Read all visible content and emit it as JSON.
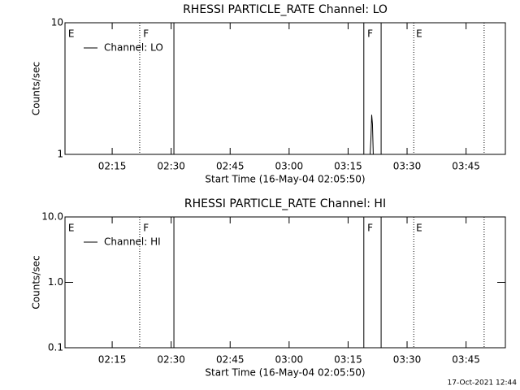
{
  "chart_data": [
    {
      "type": "line",
      "title": "RHESSI PARTICLE_RATE Channel: LO",
      "xlabel": "Start Time (16-May-04 02:05:50)",
      "ylabel": "Counts/sec",
      "log_y": true,
      "legend": "upper left",
      "xlim": [
        3,
        115
      ],
      "ylim": [
        1,
        10
      ],
      "xticks": [
        {
          "value": 15,
          "label": "02:15"
        },
        {
          "value": 30,
          "label": "02:30"
        },
        {
          "value": 45,
          "label": "02:45"
        },
        {
          "value": 60,
          "label": "03:00"
        },
        {
          "value": 75,
          "label": "03:15"
        },
        {
          "value": 90,
          "label": "03:30"
        },
        {
          "value": 105,
          "label": "03:45"
        }
      ],
      "yticks": [
        1,
        10
      ],
      "vlines": [
        {
          "x": 22.0,
          "style": "dotted"
        },
        {
          "x": 30.7,
          "style": "solid"
        },
        {
          "x": 79.0,
          "style": "solid"
        },
        {
          "x": 83.4,
          "style": "solid"
        },
        {
          "x": 91.7,
          "style": "dotted"
        },
        {
          "x": 109.6,
          "style": "dotted"
        }
      ],
      "annotations": [
        {
          "text": "E",
          "x": 3.8
        },
        {
          "text": "F",
          "x": 22.9
        },
        {
          "text": "F",
          "x": 79.9
        },
        {
          "text": "E",
          "x": 92.3
        }
      ],
      "series": [
        {
          "name": "Channel: LO",
          "color": "#000000",
          "x": [
            79.5,
            80.6,
            80.8,
            81.0,
            81.2,
            81.4,
            81.7
          ],
          "values": [
            1,
            1,
            1.3,
            2,
            1.7,
            1,
            1
          ]
        }
      ]
    },
    {
      "type": "line",
      "title": "RHESSI PARTICLE_RATE Channel: HI",
      "xlabel": "Start Time (16-May-04 02:05:50)",
      "ylabel": "Counts/sec",
      "log_y": true,
      "legend": "upper left",
      "xlim": [
        3,
        115
      ],
      "ylim": [
        0.1,
        10
      ],
      "xticks": [
        {
          "value": 15,
          "label": "02:15"
        },
        {
          "value": 30,
          "label": "02:30"
        },
        {
          "value": 45,
          "label": "02:45"
        },
        {
          "value": 60,
          "label": "03:00"
        },
        {
          "value": 75,
          "label": "03:15"
        },
        {
          "value": 90,
          "label": "03:30"
        },
        {
          "value": 105,
          "label": "03:45"
        }
      ],
      "yticks": [
        0.1,
        {
          "value": 1,
          "label": "1.0"
        },
        {
          "value": 10,
          "label": "10.0"
        }
      ],
      "vlines": [
        {
          "x": 22.0,
          "style": "dotted"
        },
        {
          "x": 30.7,
          "style": "solid"
        },
        {
          "x": 79.0,
          "style": "solid"
        },
        {
          "x": 83.4,
          "style": "solid"
        },
        {
          "x": 91.7,
          "style": "dotted"
        },
        {
          "x": 109.6,
          "style": "dotted"
        }
      ],
      "annotations": [
        {
          "text": "E",
          "x": 3.8
        },
        {
          "text": "F",
          "x": 22.9
        },
        {
          "text": "F",
          "x": 79.9
        },
        {
          "text": "E",
          "x": 92.3
        }
      ],
      "series": [
        {
          "name": "Channel: HI",
          "color": "#000000",
          "x": [],
          "values": []
        }
      ]
    }
  ],
  "footer": "17-Oct-2021 12:44"
}
